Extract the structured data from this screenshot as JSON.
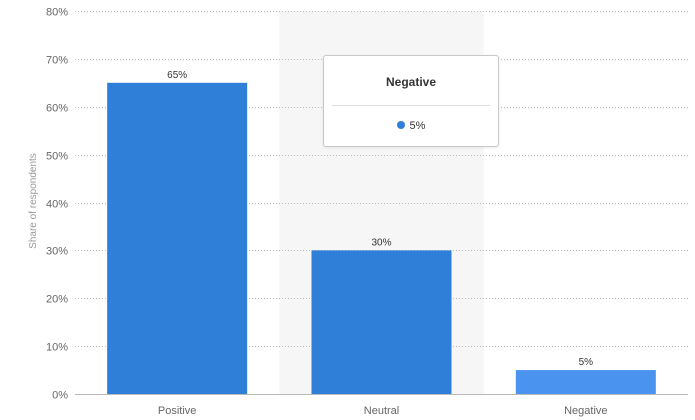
{
  "chart_data": {
    "type": "bar",
    "categories": [
      "Positive",
      "Neutral",
      "Negative"
    ],
    "values": [
      65,
      30,
      5
    ],
    "value_labels": [
      "65%",
      "30%",
      "5%"
    ],
    "ylabel": "Share of respondents",
    "ylim": [
      0,
      80
    ],
    "yticks": [
      0,
      10,
      20,
      30,
      40,
      50,
      60,
      70,
      80
    ],
    "ytick_labels": [
      "0%",
      "10%",
      "20%",
      "30%",
      "40%",
      "50%",
      "60%",
      "70%",
      "80%"
    ],
    "grid": true,
    "highlighted_category": "Neutral",
    "colors": {
      "bar": "#2f7ed8",
      "bar_hover": "#4a94ef",
      "highlight_band": "#f6f6f6",
      "grid": "#bbbbbb"
    }
  },
  "tooltip": {
    "title": "Negative",
    "value": "5%",
    "dot_color": "#2f7ed8"
  }
}
